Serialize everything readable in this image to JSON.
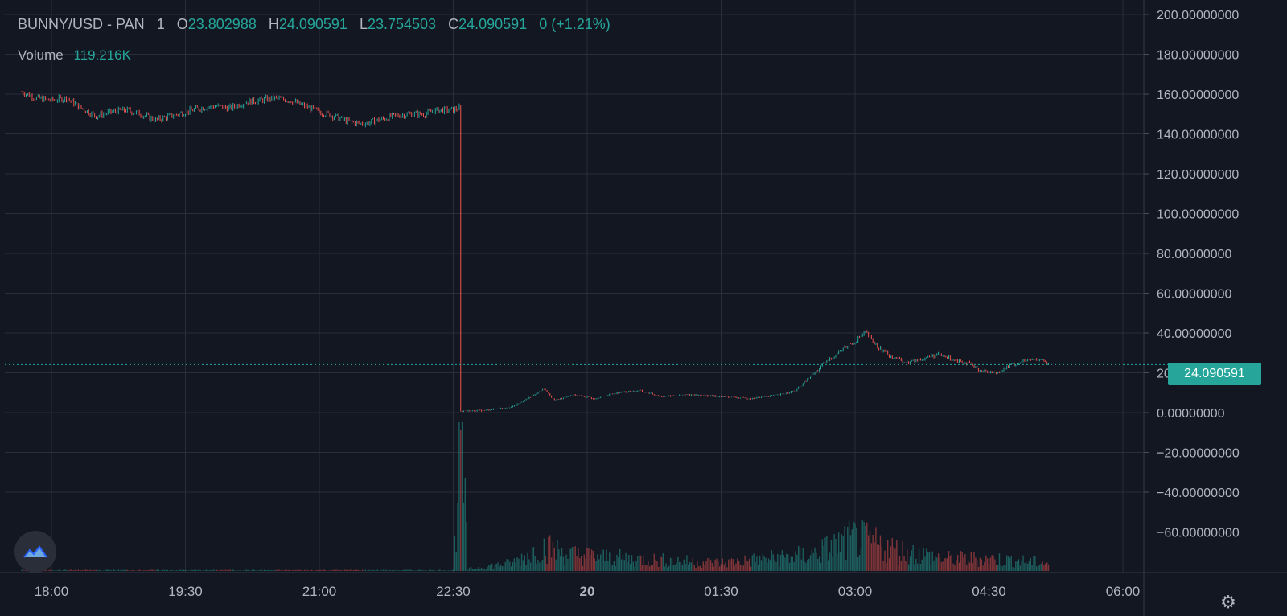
{
  "header": {
    "symbol": "BUNNY/USD - PAN",
    "interval": "1",
    "open_label": "O",
    "open": "23.802988",
    "high_label": "H",
    "high": "24.090591",
    "low_label": "L",
    "low": "23.754503",
    "close_label": "C",
    "close": "24.090591",
    "change": "0 (+1.21%)"
  },
  "volume": {
    "label": "Volume",
    "value": "119.216K"
  },
  "last_price_tag": "24.090591",
  "icons": {
    "logo": "tradingview-cloud-icon",
    "settings": "gear-icon"
  },
  "colors": {
    "up": "#26a69a",
    "down": "#ef5350",
    "background": "#131722",
    "grid": "#2a2e39",
    "text": "#b2b5be"
  },
  "chart_data": {
    "type": "candlestick",
    "x_tick_labels": [
      "18:00",
      "19:30",
      "21:00",
      "22:30",
      "20",
      "01:30",
      "03:00",
      "04:30",
      "06:00"
    ],
    "y_tick_labels": [
      "200.00000000",
      "180.00000000",
      "160.00000000",
      "140.00000000",
      "120.00000000",
      "100.00000000",
      "80.00000000",
      "60.00000000",
      "40.00000000",
      "20.00000000",
      "0.00000000",
      "−20.00000000",
      "−40.00000000",
      "−60.00000000"
    ],
    "ylim": [
      -80,
      200
    ],
    "grid": true,
    "last_price": 24.090591,
    "price_path": [
      [
        "17:40",
        161
      ],
      [
        "17:50",
        158
      ],
      [
        "18:00",
        157
      ],
      [
        "18:10",
        158
      ],
      [
        "18:20",
        153
      ],
      [
        "18:30",
        149
      ],
      [
        "18:40",
        151
      ],
      [
        "18:50",
        152
      ],
      [
        "19:00",
        150
      ],
      [
        "19:10",
        147
      ],
      [
        "19:20",
        149
      ],
      [
        "19:30",
        151
      ],
      [
        "19:40",
        153
      ],
      [
        "19:50",
        154
      ],
      [
        "20:00",
        153
      ],
      [
        "20:10",
        156
      ],
      [
        "20:20",
        157
      ],
      [
        "20:30",
        158
      ],
      [
        "20:40",
        157
      ],
      [
        "20:50",
        154
      ],
      [
        "21:00",
        151
      ],
      [
        "21:10",
        149
      ],
      [
        "21:20",
        146
      ],
      [
        "21:30",
        145
      ],
      [
        "21:40",
        147
      ],
      [
        "21:50",
        149
      ],
      [
        "22:00",
        150
      ],
      [
        "22:10",
        150
      ],
      [
        "22:20",
        152
      ],
      [
        "22:30",
        152
      ],
      [
        "22:34",
        153
      ],
      [
        "22:35",
        0.8
      ],
      [
        "22:50",
        1
      ],
      [
        "23:10",
        3
      ],
      [
        "23:25",
        9
      ],
      [
        "23:31",
        12
      ],
      [
        "23:38",
        6
      ],
      [
        "23:50",
        9
      ],
      [
        "00:05",
        7
      ],
      [
        "00:20",
        10
      ],
      [
        "00:35",
        11
      ],
      [
        "00:50",
        8
      ],
      [
        "01:10",
        9
      ],
      [
        "01:30",
        8
      ],
      [
        "01:50",
        7
      ],
      [
        "02:10",
        9
      ],
      [
        "02:20",
        11
      ],
      [
        "02:30",
        18
      ],
      [
        "02:40",
        25
      ],
      [
        "02:50",
        31
      ],
      [
        "03:00",
        36
      ],
      [
        "03:07",
        40
      ],
      [
        "03:15",
        33
      ],
      [
        "03:25",
        28
      ],
      [
        "03:35",
        25
      ],
      [
        "03:45",
        27
      ],
      [
        "03:55",
        29
      ],
      [
        "04:05",
        27
      ],
      [
        "04:15",
        25
      ],
      [
        "04:25",
        21
      ],
      [
        "04:35",
        20
      ],
      [
        "04:45",
        24
      ],
      [
        "04:55",
        26
      ],
      [
        "05:05",
        27
      ],
      [
        "05:10",
        24
      ]
    ],
    "volume_profile": [
      [
        "17:40",
        0.2
      ],
      [
        "22:30",
        0.2
      ],
      [
        "22:35",
        35
      ],
      [
        "22:40",
        0.5
      ],
      [
        "23:10",
        2
      ],
      [
        "23:30",
        6
      ],
      [
        "23:50",
        4
      ],
      [
        "00:30",
        3
      ],
      [
        "01:30",
        2
      ],
      [
        "02:30",
        4
      ],
      [
        "03:00",
        8
      ],
      [
        "03:30",
        5
      ],
      [
        "04:00",
        3
      ],
      [
        "04:30",
        3
      ],
      [
        "05:10",
        2
      ]
    ]
  }
}
